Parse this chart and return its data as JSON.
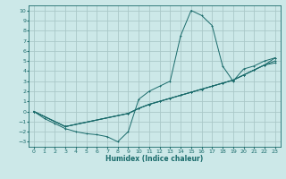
{
  "xlabel": "Humidex (Indice chaleur)",
  "bg_color": "#cce8e8",
  "grid_color": "#aac8c8",
  "line_color": "#1a6b6b",
  "xlim": [
    -0.5,
    23.5
  ],
  "ylim": [
    -3.5,
    10.5
  ],
  "xticks": [
    0,
    1,
    2,
    3,
    4,
    5,
    6,
    7,
    8,
    9,
    10,
    11,
    12,
    13,
    14,
    15,
    16,
    17,
    18,
    19,
    20,
    21,
    22,
    23
  ],
  "yticks": [
    -3,
    -2,
    -1,
    0,
    1,
    2,
    3,
    4,
    5,
    6,
    7,
    8,
    9,
    10
  ],
  "line1_x": [
    0,
    1,
    2,
    3,
    4,
    5,
    6,
    7,
    8,
    9,
    10,
    11,
    12,
    13,
    14,
    15,
    16,
    17,
    18,
    19,
    20,
    21,
    22,
    23
  ],
  "line1_y": [
    0.0,
    -0.7,
    -1.2,
    -1.7,
    -2.0,
    -2.2,
    -2.3,
    -2.5,
    -3.0,
    -2.0,
    1.2,
    2.0,
    2.5,
    3.0,
    7.5,
    10.0,
    9.5,
    8.5,
    4.5,
    3.0,
    4.2,
    4.5,
    5.0,
    5.3
  ],
  "line2_x": [
    0,
    3,
    9,
    10,
    11,
    12,
    13,
    14,
    15,
    16,
    17,
    18,
    19,
    20,
    21,
    22,
    23
  ],
  "line2_y": [
    0.0,
    -1.5,
    -0.2,
    0.3,
    0.7,
    1.0,
    1.3,
    1.6,
    1.9,
    2.2,
    2.5,
    2.8,
    3.1,
    3.6,
    4.1,
    4.6,
    5.3
  ],
  "line3_x": [
    0,
    3,
    9,
    10,
    11,
    12,
    13,
    14,
    15,
    16,
    17,
    18,
    19,
    20,
    21,
    22,
    23
  ],
  "line3_y": [
    0.0,
    -1.5,
    -0.2,
    0.3,
    0.7,
    1.0,
    1.3,
    1.6,
    1.9,
    2.2,
    2.5,
    2.8,
    3.1,
    3.6,
    4.1,
    4.6,
    5.0
  ],
  "line4_x": [
    0,
    3,
    9,
    10,
    11,
    12,
    13,
    14,
    15,
    16,
    17,
    18,
    19,
    20,
    21,
    22,
    23
  ],
  "line4_y": [
    0.0,
    -1.5,
    -0.2,
    0.3,
    0.7,
    1.0,
    1.3,
    1.6,
    1.9,
    2.2,
    2.5,
    2.8,
    3.1,
    3.6,
    4.1,
    4.6,
    4.8
  ]
}
